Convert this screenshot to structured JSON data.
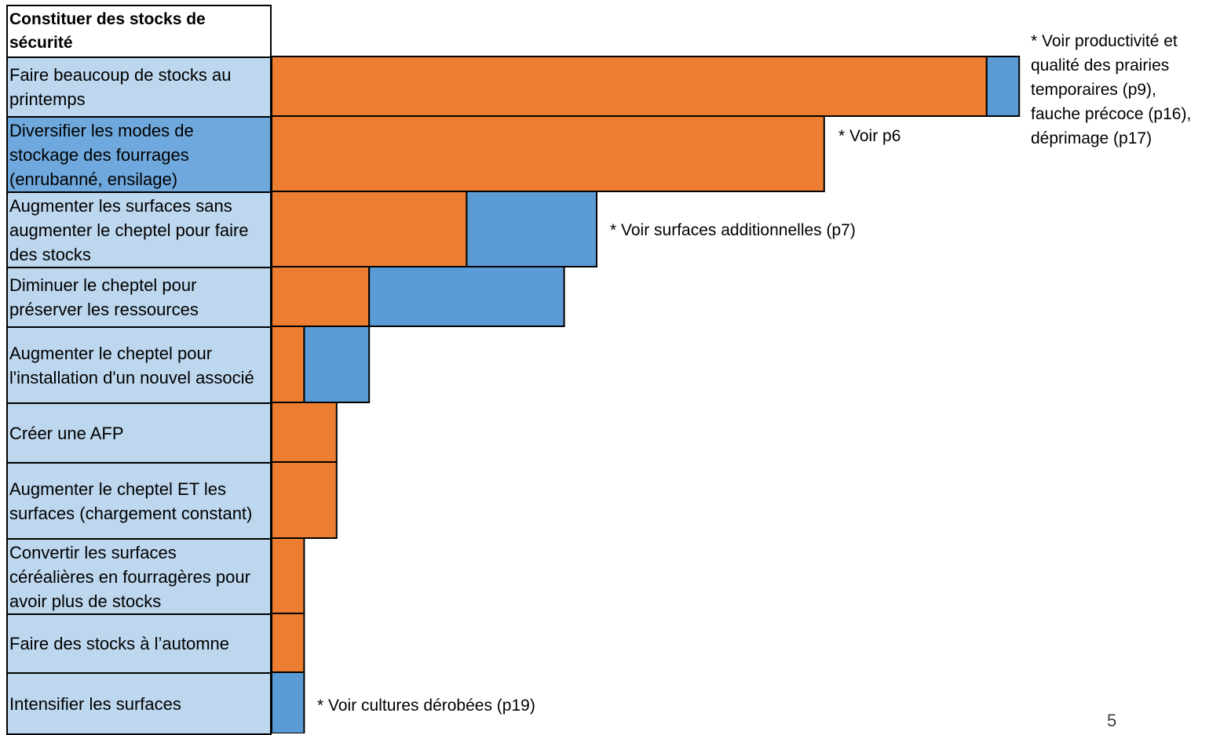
{
  "chart_data": {
    "type": "bar",
    "title": "Constituer des stocks de sécurité",
    "orientation": "horizontal",
    "stacked": true,
    "colors": {
      "orange": "#ed7d31",
      "blue": "#5b9bd5",
      "label_light": "#bdd7ee",
      "label_highlight": "#6fa8dc"
    },
    "categories": [
      "Faire beaucoup de stocks au printemps",
      "Diversifier les modes de stockage des fourrages (enrubanné, ensilage)",
      "Augmenter les surfaces sans augmenter le cheptel pour faire des stocks",
      "Diminuer le cheptel pour préserver les ressources",
      "Augmenter le cheptel pour l'installation d'un nouvel associé",
      "Créer une AFP",
      "Augmenter le cheptel ET les surfaces (chargement constant)",
      "Convertir les surfaces céréalières en fourragères pour avoir plus de stocks",
      "Faire des stocks à l’automne",
      "Intensifier les surfaces"
    ],
    "highlighted_category": "Diversifier les modes de stockage des fourrages (enrubanné, ensilage)",
    "series": [
      {
        "color": "#ed7d31",
        "values": [
          22,
          17,
          6,
          3,
          1,
          2,
          2,
          1,
          1,
          0
        ]
      },
      {
        "color": "#5b9bd5",
        "values": [
          1,
          0,
          4,
          6,
          2,
          0,
          0,
          0,
          0,
          1
        ]
      }
    ],
    "annotations": [
      {
        "category_index": 0,
        "text": "* Voir productivité et qualité des prairies temporaires (p9), fauche précoce (p16), déprimage (p17)"
      },
      {
        "category_index": 1,
        "text": "* Voir p6"
      },
      {
        "category_index": 2,
        "text": "* Voir surfaces additionnelles (p7)"
      },
      {
        "category_index": 9,
        "text": "* Voir cultures dérobées (p19)"
      }
    ]
  },
  "notes": {
    "n0": [
      "* Voir productivité et",
      "qualité des prairies",
      "temporaires (p9),",
      "fauche précoce (p16),",
      "déprimage (p17)"
    ],
    "n1": "* Voir p6",
    "n2": "* Voir surfaces additionnelles (p7)",
    "n9": "* Voir cultures dérobées (p19)"
  },
  "page_number": "5"
}
